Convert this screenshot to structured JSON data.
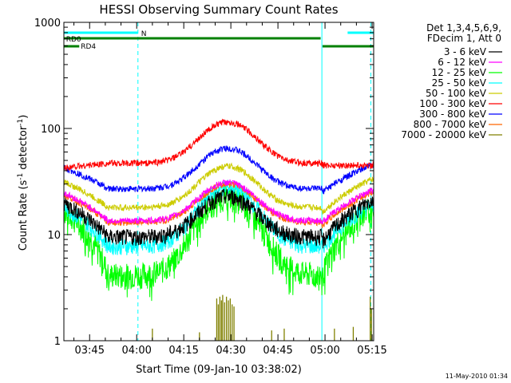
{
  "chart_data": {
    "type": "line",
    "title": "HESSI Observing Summary Count Rates",
    "xlabel": "Start Time (09-Jan-10 03:38:02)",
    "ylabel_main": "Count Rate (s",
    "ylabel_sup1": "-1",
    "ylabel_mid": " detector",
    "ylabel_sup2": "-1",
    "ylabel_end": ")",
    "y_scale": "log",
    "ylim": [
      1,
      1000
    ],
    "xlim_minutes": [
      -8.2,
      90.5
    ],
    "x_ticks": [
      {
        "t": 0,
        "label": "03:45"
      },
      {
        "t": 15,
        "label": "04:00"
      },
      {
        "t": 30,
        "label": "04:15"
      },
      {
        "t": 45,
        "label": "04:30"
      },
      {
        "t": 60,
        "label": "04:45"
      },
      {
        "t": 75,
        "label": "05:00"
      },
      {
        "t": 90,
        "label": "05:15"
      }
    ],
    "y_ticks": [
      {
        "v": 1,
        "label": "1"
      },
      {
        "v": 10,
        "label": "10"
      },
      {
        "v": 100,
        "label": "100"
      },
      {
        "v": 1000,
        "label": "1000"
      }
    ],
    "legend_header": [
      "Det 1,3,4,5,6,9,",
      "FDecim 1, Att 0"
    ],
    "series": [
      {
        "name": "3 - 6 keV",
        "color": "#000000",
        "base": 9.5,
        "peak": 23,
        "drop": 8.5,
        "end": 21
      },
      {
        "name": "6 - 12 keV",
        "color": "#ff00ff",
        "base": 13.5,
        "peak": 31,
        "drop": 13,
        "end": 26
      },
      {
        "name": "12 - 25 keV",
        "color": "#00ff00",
        "base": 4.2,
        "peak": 23,
        "drop": 4.0,
        "end": 18
      },
      {
        "name": "25 - 50 keV",
        "color": "#00ffff",
        "base": 7.8,
        "peak": 28,
        "drop": 7.5,
        "end": 19
      },
      {
        "name": "50 - 100 keV",
        "color": "#cccc00",
        "base": 18,
        "peak": 44,
        "drop": 16,
        "end": 33
      },
      {
        "name": "100 - 300 keV",
        "color": "#ff0000",
        "base": 47,
        "peak": 115,
        "drop": 45,
        "end": 45
      },
      {
        "name": "300 - 800 keV",
        "color": "#0000ff",
        "base": 27,
        "peak": 65,
        "drop": 25,
        "end": 45
      },
      {
        "name": "800 - 7000 keV",
        "color": "#ff6600",
        "base": 13,
        "peak": 30,
        "drop": 12,
        "end": 25
      },
      {
        "name": "7000 - 20000 keV",
        "color": "#808000",
        "base": 1,
        "peak": 1,
        "drop": 1,
        "end": 1
      }
    ],
    "flags": [
      {
        "label": "N",
        "color": "#00ffff",
        "segments": [
          [
            -8.2,
            15.4
          ],
          [
            82.2,
            90.5
          ]
        ]
      },
      {
        "label": "RD0",
        "color": "#008000",
        "segments": [
          [
            -8.2,
            73.6
          ]
        ]
      },
      {
        "label": "RD4",
        "color": "#008000",
        "segments": [
          [
            -8.2,
            -3.3
          ],
          [
            74.2,
            90.5
          ]
        ]
      }
    ],
    "vlines": [
      {
        "t": -8.2,
        "color": "#00ffff",
        "style": "solid"
      },
      {
        "t": 15.4,
        "color": "#00ffff",
        "style": "dashed"
      },
      {
        "t": 74.0,
        "color": "#00ffff",
        "style": "solid"
      },
      {
        "t": 89.6,
        "color": "#00ffff",
        "style": "dashed"
      }
    ],
    "timestamp": "11-May-2010 01:34"
  }
}
